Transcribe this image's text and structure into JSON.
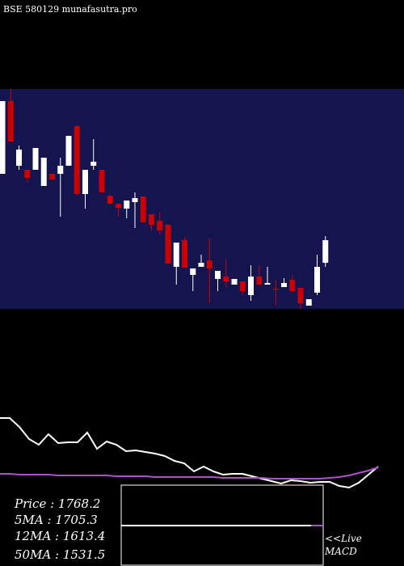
{
  "chart_data": [
    {
      "type": "candlestick",
      "title": "BSE 580129 munafasutra.pro",
      "ylim": [
        1343,
        2703
      ],
      "up_color": "#ffffff",
      "down_color": "#cc0000",
      "background": "#14144f",
      "open": [
        2178,
        2628,
        2228,
        2203,
        2203,
        2103,
        2178,
        2178,
        2228,
        2473,
        2053,
        2228,
        2203,
        2043,
        1993,
        1963,
        2003,
        2038,
        1928,
        1888,
        1863,
        1603,
        1768,
        1553,
        1603,
        1643,
        1528,
        1543,
        1493,
        1513,
        1428,
        1543,
        1493,
        1468,
        1478,
        1523,
        1473,
        1363,
        1443,
        1628
      ],
      "high": [
        2628,
        2703,
        2353,
        2203,
        2338,
        2278,
        2178,
        2278,
        2413,
        2478,
        2203,
        2393,
        2203,
        2043,
        1993,
        2013,
        2063,
        2038,
        1928,
        1943,
        1863,
        1753,
        1788,
        1593,
        1678,
        1778,
        1578,
        1653,
        1528,
        1513,
        1613,
        1613,
        1603,
        1523,
        1533,
        1553,
        1473,
        1403,
        1678,
        1793
      ],
      "low": [
        2178,
        2378,
        2203,
        2128,
        2203,
        2103,
        2143,
        1913,
        2228,
        2043,
        1963,
        2203,
        2063,
        1993,
        1913,
        1903,
        1843,
        1878,
        1828,
        1803,
        1623,
        1493,
        1598,
        1453,
        1603,
        1378,
        1453,
        1478,
        1493,
        1428,
        1393,
        1493,
        1493,
        1363,
        1478,
        1453,
        1343,
        1363,
        1428,
        1603
      ],
      "close": [
        2628,
        2378,
        2328,
        2153,
        2338,
        2278,
        2143,
        2228,
        2413,
        2053,
        2203,
        2253,
        2063,
        1993,
        1968,
        2013,
        2028,
        1878,
        1863,
        1828,
        1623,
        1753,
        1598,
        1593,
        1628,
        1593,
        1578,
        1513,
        1528,
        1453,
        1543,
        1493,
        1503,
        1463,
        1503,
        1453,
        1378,
        1403,
        1603,
        1768
      ]
    },
    {
      "type": "line",
      "ylim": [
        -10,
        100
      ],
      "series": [
        {
          "color": "#ffffff",
          "values": [
            83,
            83,
            72,
            57,
            50,
            63,
            52,
            53,
            53,
            65,
            45,
            54,
            50,
            42,
            43,
            41,
            39,
            36,
            30,
            27,
            17,
            23,
            17,
            13,
            14,
            14,
            11,
            8,
            5,
            2,
            6,
            5,
            3,
            4,
            4,
            -1,
            -3,
            3,
            13,
            23
          ]
        },
        {
          "color": "#b04fd0",
          "values": [
            14,
            14,
            13,
            13,
            13,
            13,
            12,
            12,
            12,
            12,
            12,
            12,
            11,
            11,
            11,
            11,
            10,
            10,
            10,
            10,
            10,
            10,
            10,
            9,
            9,
            9,
            9,
            9,
            8,
            8,
            8,
            8,
            8,
            8,
            9,
            10,
            12,
            15,
            18,
            22
          ]
        }
      ]
    },
    {
      "type": "text",
      "stats": [
        "Price   : 1768.2",
        "5MA  : 1705.3",
        "12MA : 1613.4",
        "50MA : 1531.5"
      ],
      "live": "<<Live",
      "macd": "MACD"
    }
  ]
}
